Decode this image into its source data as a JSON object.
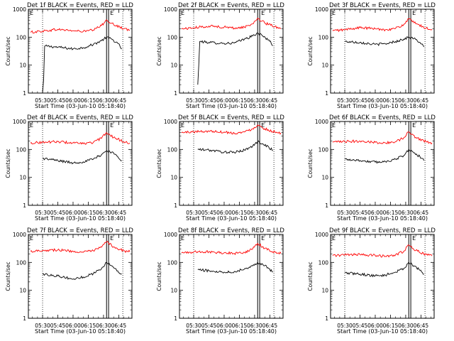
{
  "chart_data": [
    {
      "type": "line",
      "title": "Det 1f BLACK = Events, RED = LLD",
      "xlabel": "Start Time (03-Jun-10 05:18:40)",
      "ylabel": "Counts/sec",
      "yscale": "log",
      "ylim": [
        1,
        1000
      ],
      "xlim": [
        "05:16",
        "06:58"
      ],
      "xticks": [
        "05:30",
        "05:45",
        "06:00",
        "06:15",
        "06:30",
        "06:45"
      ],
      "yticks": [
        "1",
        "10",
        "100",
        "1000"
      ],
      "markers": {
        "dotted": [
          "05:30",
          "06:49"
        ],
        "solid": [
          "06:33",
          "06:35"
        ],
        "labels": [
          "E",
          "E"
        ]
      },
      "series": [
        {
          "name": "Events",
          "color": "#000000",
          "x": [
            "05:30",
            "05:31",
            "05:32",
            "05:45",
            "06:00",
            "06:10",
            "06:20",
            "06:28",
            "06:33",
            "06:38",
            "06:44",
            "06:48"
          ],
          "values": [
            1,
            3,
            48,
            44,
            38,
            42,
            55,
            75,
            100,
            85,
            60,
            38
          ]
        },
        {
          "name": "LLD",
          "color": "#ff0000",
          "x": [
            "05:18",
            "05:30",
            "05:45",
            "06:00",
            "06:10",
            "06:20",
            "06:28",
            "06:33",
            "06:40",
            "06:50",
            "06:56"
          ],
          "values": [
            150,
            165,
            190,
            170,
            160,
            180,
            260,
            420,
            280,
            200,
            180
          ]
        }
      ]
    },
    {
      "type": "line",
      "title": "Det 2f BLACK = Events, RED = LLD",
      "xlabel": "Start Time (03-Jun-10 05:18:40)",
      "ylabel": "Counts/sec",
      "yscale": "log",
      "ylim": [
        1,
        1000
      ],
      "xlim": [
        "05:16",
        "06:58"
      ],
      "xticks": [
        "05:30",
        "05:45",
        "06:00",
        "06:15",
        "06:30",
        "06:45"
      ],
      "yticks": [
        "1",
        "10",
        "100",
        "1000"
      ],
      "markers": {
        "dotted": [
          "05:30",
          "06:49"
        ],
        "solid": [
          "06:33",
          "06:35"
        ],
        "labels": [
          "E",
          "E"
        ]
      },
      "series": [
        {
          "name": "Events",
          "color": "#000000",
          "x": [
            "05:34",
            "05:35",
            "05:36",
            "05:45",
            "06:00",
            "06:10",
            "06:20",
            "06:28",
            "06:33",
            "06:38",
            "06:44",
            "06:48"
          ],
          "values": [
            2,
            10,
            70,
            65,
            60,
            62,
            85,
            110,
            140,
            110,
            80,
            50
          ]
        },
        {
          "name": "LLD",
          "color": "#ff0000",
          "x": [
            "05:18",
            "05:30",
            "05:45",
            "06:00",
            "06:10",
            "06:20",
            "06:28",
            "06:33",
            "06:40",
            "06:50",
            "06:56"
          ],
          "values": [
            200,
            215,
            250,
            230,
            210,
            230,
            300,
            480,
            320,
            240,
            210
          ]
        }
      ]
    },
    {
      "type": "line",
      "title": "Det 3f BLACK = Events, RED = LLD",
      "xlabel": "Start Time (03-Jun-10 05:18:40)",
      "ylabel": "Counts/sec",
      "yscale": "log",
      "ylim": [
        1,
        1000
      ],
      "xlim": [
        "05:16",
        "06:58"
      ],
      "xticks": [
        "05:30",
        "05:45",
        "06:00",
        "06:15",
        "06:30",
        "06:45"
      ],
      "yticks": [
        "1",
        "10",
        "100",
        "1000"
      ],
      "markers": {
        "dotted": [
          "05:30",
          "06:49"
        ],
        "solid": [
          "06:33",
          "06:35"
        ],
        "labels": [
          "E",
          "E"
        ]
      },
      "series": [
        {
          "name": "Events",
          "color": "#000000",
          "x": [
            "05:30",
            "05:45",
            "06:00",
            "06:10",
            "06:20",
            "06:28",
            "06:33",
            "06:38",
            "06:44",
            "06:48"
          ],
          "values": [
            70,
            65,
            55,
            58,
            70,
            85,
            100,
            90,
            65,
            45
          ]
        },
        {
          "name": "LLD",
          "color": "#ff0000",
          "x": [
            "05:18",
            "05:30",
            "05:45",
            "06:00",
            "06:10",
            "06:20",
            "06:28",
            "06:33",
            "06:40",
            "06:50",
            "06:56"
          ],
          "values": [
            170,
            185,
            220,
            200,
            185,
            205,
            280,
            450,
            300,
            210,
            190
          ]
        }
      ]
    },
    {
      "type": "line",
      "title": "Det 4f BLACK = Events, RED = LLD",
      "xlabel": "Start Time (03-Jun-10 05:18:40)",
      "ylabel": "Counts/sec",
      "yscale": "log",
      "ylim": [
        1,
        1000
      ],
      "xlim": [
        "05:16",
        "06:58"
      ],
      "xticks": [
        "05:30",
        "05:45",
        "06:00",
        "06:15",
        "06:30",
        "06:45"
      ],
      "yticks": [
        "1",
        "10",
        "100",
        "1000"
      ],
      "markers": {
        "dotted": [
          "05:30",
          "06:49"
        ],
        "solid": [
          "06:33",
          "06:35"
        ],
        "labels": [
          "E",
          "E"
        ]
      },
      "series": [
        {
          "name": "Events",
          "color": "#000000",
          "x": [
            "05:30",
            "05:45",
            "06:00",
            "06:10",
            "06:20",
            "06:28",
            "06:33",
            "06:38",
            "06:44",
            "06:48"
          ],
          "values": [
            48,
            40,
            33,
            36,
            45,
            65,
            90,
            80,
            55,
            40
          ]
        },
        {
          "name": "LLD",
          "color": "#ff0000",
          "x": [
            "05:18",
            "05:30",
            "05:45",
            "06:00",
            "06:10",
            "06:20",
            "06:28",
            "06:33",
            "06:40",
            "06:50",
            "06:56"
          ],
          "values": [
            170,
            180,
            190,
            170,
            160,
            180,
            250,
            400,
            270,
            190,
            170
          ]
        }
      ]
    },
    {
      "type": "line",
      "title": "Det 5f BLACK = Events, RED = LLD",
      "xlabel": "Start Time (03-Jun-10 05:18:40)",
      "ylabel": "Counts/sec",
      "yscale": "log",
      "ylim": [
        1,
        1000
      ],
      "xlim": [
        "05:16",
        "06:58"
      ],
      "xticks": [
        "05:30",
        "05:45",
        "06:00",
        "06:15",
        "06:30",
        "06:45"
      ],
      "yticks": [
        "1",
        "10",
        "100",
        "1000"
      ],
      "markers": {
        "dotted": [
          "05:30",
          "06:49"
        ],
        "solid": [
          "06:33",
          "06:35"
        ],
        "labels": [
          "E",
          "E"
        ]
      },
      "series": [
        {
          "name": "Events",
          "color": "#000000",
          "x": [
            "05:34",
            "05:45",
            "06:00",
            "06:10",
            "06:20",
            "06:28",
            "06:33",
            "06:38",
            "06:44",
            "06:48"
          ],
          "values": [
            100,
            95,
            80,
            78,
            95,
            130,
            190,
            160,
            120,
            90
          ]
        },
        {
          "name": "LLD",
          "color": "#ff0000",
          "x": [
            "05:18",
            "05:30",
            "05:45",
            "06:00",
            "06:10",
            "06:20",
            "06:28",
            "06:33",
            "06:40",
            "06:50",
            "06:56"
          ],
          "values": [
            400,
            430,
            450,
            420,
            380,
            420,
            550,
            750,
            550,
            420,
            380
          ]
        }
      ]
    },
    {
      "type": "line",
      "title": "Det 6f BLACK = Events, RED = LLD",
      "xlabel": "Start Time (03-Jun-10 05:18:40)",
      "ylabel": "Counts/sec",
      "yscale": "log",
      "ylim": [
        1,
        1000
      ],
      "xlim": [
        "05:16",
        "06:58"
      ],
      "xticks": [
        "05:30",
        "05:45",
        "06:00",
        "06:15",
        "06:30",
        "06:45"
      ],
      "yticks": [
        "1",
        "10",
        "100",
        "1000"
      ],
      "markers": {
        "dotted": [
          "05:30",
          "06:49"
        ],
        "solid": [
          "06:33",
          "06:35"
        ],
        "labels": [
          "E",
          "E"
        ]
      },
      "series": [
        {
          "name": "Events",
          "color": "#000000",
          "x": [
            "05:30",
            "05:45",
            "06:00",
            "06:10",
            "06:20",
            "06:28",
            "06:33",
            "06:38",
            "06:44",
            "06:48"
          ],
          "values": [
            45,
            40,
            35,
            37,
            45,
            60,
            100,
            75,
            55,
            40
          ]
        },
        {
          "name": "LLD",
          "color": "#ff0000",
          "x": [
            "05:18",
            "05:30",
            "05:45",
            "06:00",
            "06:10",
            "06:20",
            "06:28",
            "06:33",
            "06:40",
            "06:50",
            "06:56"
          ],
          "values": [
            180,
            190,
            200,
            180,
            170,
            190,
            260,
            420,
            270,
            190,
            170
          ]
        }
      ]
    },
    {
      "type": "line",
      "title": "Det 7f BLACK = Events, RED = LLD",
      "xlabel": "Start Time (03-Jun-10 05:18:40)",
      "ylabel": "Counts/sec",
      "yscale": "log",
      "ylim": [
        1,
        1000
      ],
      "xlim": [
        "05:16",
        "06:58"
      ],
      "xticks": [
        "05:30",
        "05:45",
        "06:00",
        "06:15",
        "06:30",
        "06:45"
      ],
      "yticks": [
        "1",
        "10",
        "100",
        "1000"
      ],
      "markers": {
        "dotted": [
          "05:30",
          "06:49"
        ],
        "solid": [
          "06:33",
          "06:35"
        ],
        "labels": [
          "E",
          "E"
        ]
      },
      "series": [
        {
          "name": "Events",
          "color": "#000000",
          "x": [
            "05:30",
            "05:45",
            "06:00",
            "06:10",
            "06:20",
            "06:28",
            "06:33",
            "06:38",
            "06:44",
            "06:48"
          ],
          "values": [
            38,
            33,
            25,
            30,
            40,
            60,
            100,
            75,
            50,
            38
          ]
        },
        {
          "name": "LLD",
          "color": "#ff0000",
          "x": [
            "05:18",
            "05:30",
            "05:45",
            "06:00",
            "06:10",
            "06:20",
            "06:28",
            "06:33",
            "06:40",
            "06:50",
            "06:56"
          ],
          "values": [
            250,
            270,
            280,
            250,
            230,
            260,
            350,
            550,
            360,
            260,
            240
          ]
        }
      ]
    },
    {
      "type": "line",
      "title": "Det 8f BLACK = Events, RED = LLD",
      "xlabel": "Start Time (03-Jun-10 05:18:40)",
      "ylabel": "Counts/sec",
      "yscale": "log",
      "ylim": [
        1,
        1000
      ],
      "xlim": [
        "05:16",
        "06:58"
      ],
      "xticks": [
        "05:30",
        "05:45",
        "06:00",
        "06:15",
        "06:30",
        "06:45"
      ],
      "yticks": [
        "1",
        "10",
        "100",
        "1000"
      ],
      "markers": {
        "dotted": [
          "05:30",
          "06:49"
        ],
        "solid": [
          "06:33",
          "06:35"
        ],
        "labels": [
          "E",
          "E"
        ]
      },
      "series": [
        {
          "name": "Events",
          "color": "#000000",
          "x": [
            "05:34",
            "05:45",
            "06:00",
            "06:10",
            "06:20",
            "06:28",
            "06:33",
            "06:38",
            "06:44",
            "06:48"
          ],
          "values": [
            55,
            50,
            45,
            47,
            58,
            75,
            100,
            85,
            60,
            45
          ]
        },
        {
          "name": "LLD",
          "color": "#ff0000",
          "x": [
            "05:18",
            "05:30",
            "05:45",
            "06:00",
            "06:10",
            "06:20",
            "06:28",
            "06:33",
            "06:40",
            "06:50",
            "06:56"
          ],
          "values": [
            220,
            235,
            240,
            220,
            210,
            230,
            300,
            480,
            320,
            230,
            210
          ]
        }
      ]
    },
    {
      "type": "line",
      "title": "Det 9f BLACK = Events, RED = LLD",
      "xlabel": "Start Time (03-Jun-10 05:18:40)",
      "ylabel": "Counts/sec",
      "yscale": "log",
      "ylim": [
        1,
        1000
      ],
      "xlim": [
        "05:16",
        "06:58"
      ],
      "xticks": [
        "05:30",
        "05:45",
        "06:00",
        "06:15",
        "06:30",
        "06:45"
      ],
      "yticks": [
        "1",
        "10",
        "100",
        "1000"
      ],
      "markers": {
        "dotted": [
          "05:30",
          "06:49"
        ],
        "solid": [
          "06:33",
          "06:35"
        ],
        "labels": [
          "E",
          "E"
        ]
      },
      "series": [
        {
          "name": "Events",
          "color": "#000000",
          "x": [
            "05:30",
            "05:45",
            "06:00",
            "06:10",
            "06:20",
            "06:28",
            "06:33",
            "06:38",
            "06:44",
            "06:48"
          ],
          "values": [
            42,
            38,
            33,
            35,
            45,
            60,
            100,
            75,
            52,
            38
          ]
        },
        {
          "name": "LLD",
          "color": "#ff0000",
          "x": [
            "05:18",
            "05:30",
            "05:45",
            "06:00",
            "06:10",
            "06:20",
            "06:28",
            "06:33",
            "06:40",
            "06:50",
            "06:56"
          ],
          "values": [
            175,
            185,
            190,
            175,
            165,
            185,
            250,
            420,
            270,
            190,
            170
          ]
        }
      ]
    }
  ]
}
